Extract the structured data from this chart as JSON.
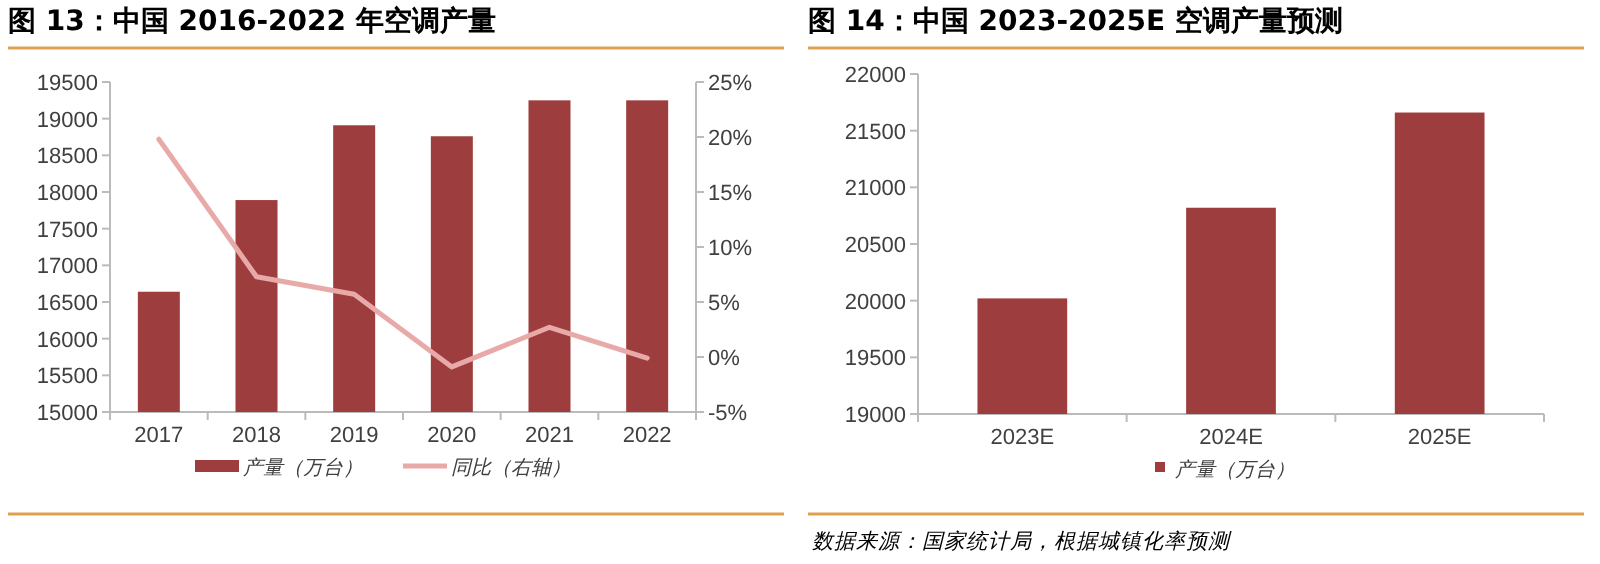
{
  "chart_data": [
    {
      "type": "bar",
      "title": "图 13：中国 2016-2022 年空调产量",
      "categories": [
        "2017",
        "2018",
        "2019",
        "2020",
        "2021",
        "2022"
      ],
      "series": [
        {
          "name": "产量（万台）",
          "type": "bar",
          "color": "#9e3d3d",
          "values": [
            16640,
            17890,
            18910,
            18760,
            19250,
            19250
          ]
        },
        {
          "name": "同比（右轴）",
          "type": "line",
          "axis": "y2",
          "color": "#e8aaa8",
          "values": [
            19.8,
            7.3,
            5.7,
            -0.9,
            2.7,
            -0.1
          ]
        }
      ],
      "ylim": [
        15000,
        19500
      ],
      "yticks": [
        15000,
        15500,
        16000,
        16500,
        17000,
        17500,
        18000,
        18500,
        19000,
        19500
      ],
      "y2lim": [
        -5,
        25
      ],
      "y2ticks": [
        {
          "value": -5,
          "label": "-5%"
        },
        {
          "value": 0,
          "label": "0%"
        },
        {
          "value": 5,
          "label": "5%"
        },
        {
          "value": 10,
          "label": "10%"
        },
        {
          "value": 15,
          "label": "15%"
        },
        {
          "value": 20,
          "label": "20%"
        },
        {
          "value": 25,
          "label": "25%"
        }
      ],
      "legend": "bottom",
      "grid": false
    },
    {
      "type": "bar",
      "title": "图 14：中国 2023-2025E 空调产量预测",
      "categories": [
        "2023E",
        "2024E",
        "2025E"
      ],
      "series": [
        {
          "name": "产量（万台）",
          "color": "#9e3d3d",
          "values": [
            20020,
            20820,
            21660
          ]
        }
      ],
      "ylim": [
        19000,
        22000
      ],
      "yticks": [
        19000,
        19500,
        20000,
        20500,
        21000,
        21500,
        22000
      ],
      "legend": "bottom",
      "grid": false,
      "annotations": [
        "数据来源：国家统计局，根据城镇化率预测"
      ]
    }
  ]
}
